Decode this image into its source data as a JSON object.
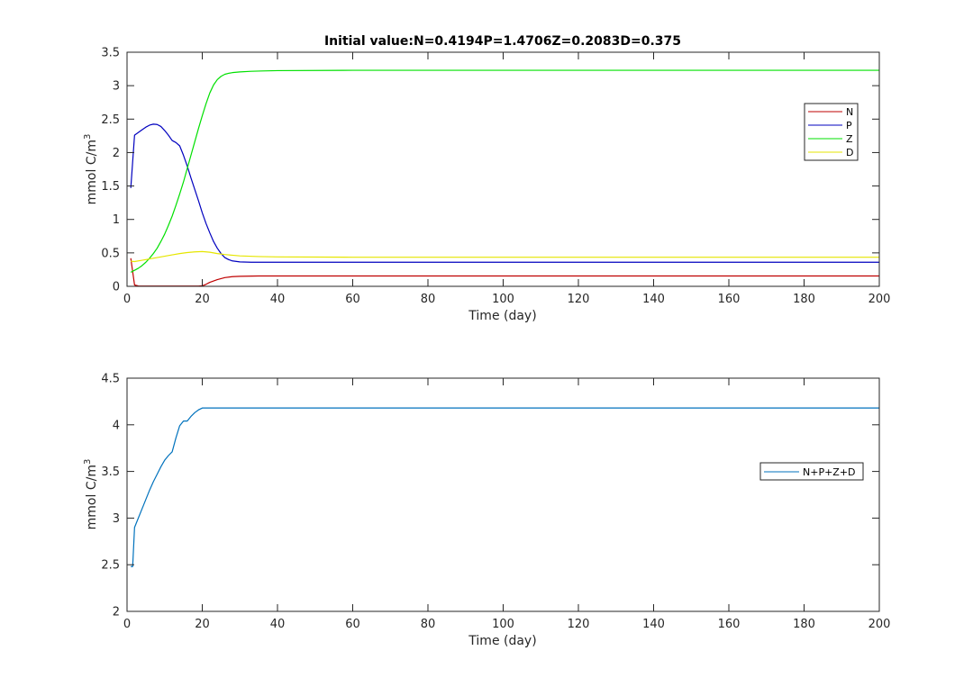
{
  "chart_data": [
    {
      "type": "line",
      "title": "Initial value:N=0.4194P=1.4706Z=0.2083D=0.375",
      "xlabel": "Time (day)",
      "ylabel_text": "mmol C/m",
      "ylabel_sup": "3",
      "xlim": [
        0,
        200
      ],
      "ylim": [
        0,
        3.5
      ],
      "xticks": [
        0,
        20,
        40,
        60,
        80,
        100,
        120,
        140,
        160,
        180,
        200
      ],
      "yticks": [
        0,
        0.5,
        1,
        1.5,
        2,
        2.5,
        3,
        3.5
      ],
      "yticklabels": [
        "0",
        "0.5",
        "1",
        "1.5",
        "2",
        "2.5",
        "3",
        "3.5"
      ],
      "grid": false,
      "legend": "top-right",
      "series": [
        {
          "name": "N",
          "color": "#bf0000",
          "x": [
            1,
            2,
            3,
            5,
            10,
            15,
            19,
            20,
            21,
            22,
            24,
            26,
            28,
            30,
            35,
            40,
            60,
            100,
            150,
            200
          ],
          "y": [
            0.42,
            0.02,
            0.005,
            0.003,
            0.003,
            0.003,
            0.003,
            0.008,
            0.03,
            0.06,
            0.1,
            0.13,
            0.145,
            0.15,
            0.155,
            0.155,
            0.155,
            0.155,
            0.155,
            0.155
          ]
        },
        {
          "name": "P",
          "color": "#0000bf",
          "x": [
            1,
            2,
            3,
            4,
            5,
            6,
            7,
            8,
            9,
            10,
            11,
            12,
            13,
            14,
            15,
            16,
            17,
            18,
            19,
            20,
            21,
            22,
            23,
            24,
            25,
            26,
            27,
            28,
            30,
            33,
            36,
            40,
            60,
            100,
            150,
            200
          ],
          "y": [
            1.47,
            2.26,
            2.3,
            2.34,
            2.38,
            2.41,
            2.425,
            2.42,
            2.39,
            2.33,
            2.26,
            2.18,
            2.15,
            2.1,
            1.96,
            1.8,
            1.62,
            1.45,
            1.28,
            1.1,
            0.94,
            0.8,
            0.67,
            0.57,
            0.49,
            0.43,
            0.4,
            0.38,
            0.365,
            0.36,
            0.36,
            0.36,
            0.36,
            0.36,
            0.36,
            0.36
          ]
        },
        {
          "name": "Z",
          "color": "#00e000",
          "x": [
            1,
            2,
            3,
            4,
            5,
            6,
            7,
            8,
            9,
            10,
            11,
            12,
            13,
            14,
            15,
            16,
            17,
            18,
            19,
            20,
            21,
            22,
            23,
            24,
            25,
            26,
            27,
            28,
            30,
            33,
            36,
            40,
            60,
            100,
            150,
            200
          ],
          "y": [
            0.21,
            0.24,
            0.27,
            0.31,
            0.36,
            0.42,
            0.49,
            0.57,
            0.67,
            0.78,
            0.91,
            1.05,
            1.21,
            1.38,
            1.56,
            1.76,
            1.96,
            2.16,
            2.36,
            2.55,
            2.73,
            2.89,
            3.01,
            3.09,
            3.14,
            3.17,
            3.185,
            3.195,
            3.205,
            3.215,
            3.22,
            3.225,
            3.23,
            3.23,
            3.23,
            3.23
          ]
        },
        {
          "name": "D",
          "color": "#e6e600",
          "x": [
            1,
            2,
            4,
            6,
            8,
            10,
            12,
            14,
            16,
            18,
            20,
            22,
            24,
            26,
            28,
            30,
            35,
            40,
            60,
            100,
            150,
            200
          ],
          "y": [
            0.375,
            0.37,
            0.39,
            0.41,
            0.43,
            0.45,
            0.47,
            0.49,
            0.505,
            0.515,
            0.52,
            0.51,
            0.49,
            0.475,
            0.465,
            0.455,
            0.445,
            0.44,
            0.435,
            0.435,
            0.435,
            0.435
          ]
        }
      ]
    },
    {
      "type": "line",
      "title": "",
      "xlabel": "Time (day)",
      "ylabel_text": "mmol C/m",
      "ylabel_sup": "3",
      "xlim": [
        0,
        200
      ],
      "ylim": [
        2,
        4.5
      ],
      "xticks": [
        0,
        20,
        40,
        60,
        80,
        100,
        120,
        140,
        160,
        180,
        200
      ],
      "yticks": [
        2,
        2.5,
        3,
        3.5,
        4,
        4.5
      ],
      "yticklabels": [
        "2",
        "2.5",
        "3",
        "3.5",
        "4",
        "4.5"
      ],
      "grid": false,
      "legend": "right",
      "series": [
        {
          "name": "N+P+Z+D",
          "color": "#0072bd",
          "x": [
            1,
            1.5,
            2,
            3,
            4,
            5,
            6,
            7,
            8,
            9,
            10,
            11,
            12,
            13,
            14,
            15,
            16,
            17,
            18,
            19,
            20,
            40,
            100,
            150,
            200
          ],
          "y": [
            2.48,
            2.48,
            2.9,
            3.0,
            3.1,
            3.2,
            3.3,
            3.39,
            3.47,
            3.55,
            3.62,
            3.67,
            3.71,
            3.86,
            3.99,
            4.04,
            4.04,
            4.09,
            4.13,
            4.16,
            4.18,
            4.18,
            4.18,
            4.18,
            4.18
          ]
        }
      ]
    }
  ]
}
